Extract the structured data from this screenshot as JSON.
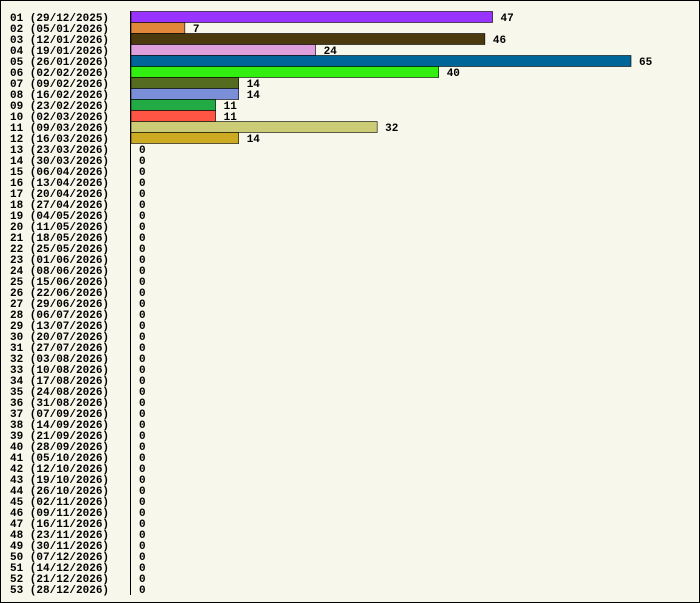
{
  "chart_data": {
    "type": "hbar",
    "categories": [
      "01 (29/12/2025)",
      "02 (05/01/2026)",
      "03 (12/01/2026)",
      "04 (19/01/2026)",
      "05 (26/01/2026)",
      "06 (02/02/2026)",
      "07 (09/02/2026)",
      "08 (16/02/2026)",
      "09 (23/02/2026)",
      "10 (02/03/2026)",
      "11 (09/03/2026)",
      "12 (16/03/2026)",
      "13 (23/03/2026)",
      "14 (30/03/2026)",
      "15 (06/04/2026)",
      "16 (13/04/2026)",
      "17 (20/04/2026)",
      "18 (27/04/2026)",
      "19 (04/05/2026)",
      "20 (11/05/2026)",
      "21 (18/05/2026)",
      "22 (25/05/2026)",
      "23 (01/06/2026)",
      "24 (08/06/2026)",
      "25 (15/06/2026)",
      "26 (22/06/2026)",
      "27 (29/06/2026)",
      "28 (06/07/2026)",
      "29 (13/07/2026)",
      "30 (20/07/2026)",
      "31 (27/07/2026)",
      "32 (03/08/2026)",
      "33 (10/08/2026)",
      "34 (17/08/2026)",
      "35 (24/08/2026)",
      "36 (31/08/2026)",
      "37 (07/09/2026)",
      "38 (14/09/2026)",
      "39 (21/09/2026)",
      "40 (28/09/2026)",
      "41 (05/10/2026)",
      "42 (12/10/2026)",
      "43 (19/10/2026)",
      "44 (26/10/2026)",
      "45 (02/11/2026)",
      "46 (09/11/2026)",
      "47 (16/11/2026)",
      "48 (23/11/2026)",
      "49 (30/11/2026)",
      "50 (07/12/2026)",
      "51 (14/12/2026)",
      "52 (21/12/2026)",
      "53 (28/12/2026)"
    ],
    "values": [
      47,
      7,
      46,
      24,
      65,
      40,
      14,
      14,
      11,
      11,
      32,
      14,
      0,
      0,
      0,
      0,
      0,
      0,
      0,
      0,
      0,
      0,
      0,
      0,
      0,
      0,
      0,
      0,
      0,
      0,
      0,
      0,
      0,
      0,
      0,
      0,
      0,
      0,
      0,
      0,
      0,
      0,
      0,
      0,
      0,
      0,
      0,
      0,
      0,
      0,
      0,
      0,
      0
    ],
    "colors": [
      "#9933ff",
      "#e0873a",
      "#4a3a0e",
      "#dda0dd",
      "#006699",
      "#33ee11",
      "#556b1f",
      "#7b8fd8",
      "#22aa44",
      "#ff5544",
      "#cccc77",
      "#ccaa22",
      null,
      null,
      null,
      null,
      null,
      null,
      null,
      null,
      null,
      null,
      null,
      null,
      null,
      null,
      null,
      null,
      null,
      null,
      null,
      null,
      null,
      null,
      null,
      null,
      null,
      null,
      null,
      null,
      null,
      null,
      null,
      null,
      null,
      null,
      null,
      null,
      null,
      null,
      null,
      null,
      null
    ]
  }
}
